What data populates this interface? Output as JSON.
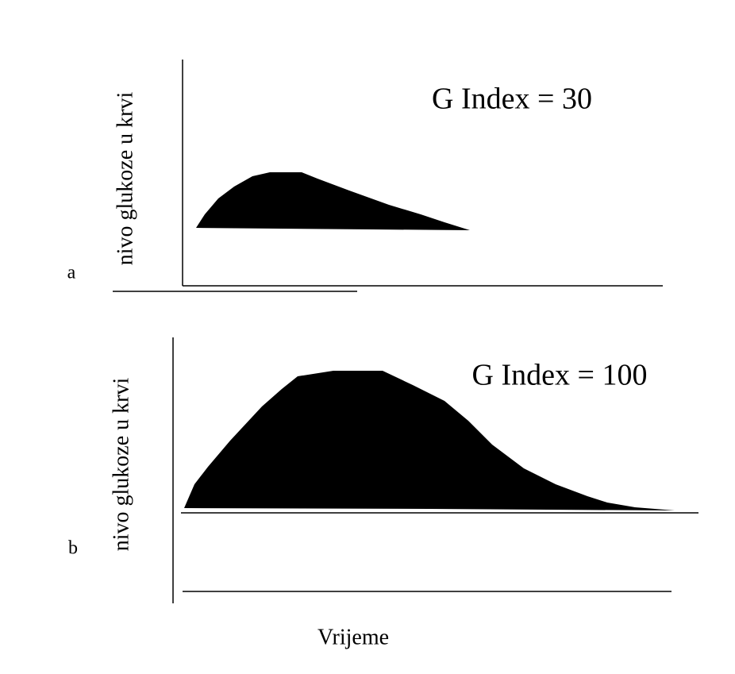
{
  "panels": [
    {
      "label": "a",
      "y_label": "nivo glukoze u krvi",
      "annotation": "G Index = 30"
    },
    {
      "label": "b",
      "y_label": "nivo glukoze u krvi",
      "annotation": "G Index = 100"
    }
  ],
  "x_label": "Vrijeme"
}
